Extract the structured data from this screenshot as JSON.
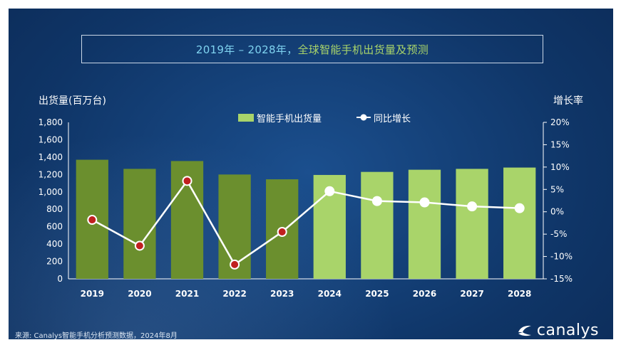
{
  "title": {
    "part_a": "2019年 – 2028年，",
    "part_b": "全球智能手机出货量及预测"
  },
  "source": "来源: Canalys智能手机分析预测数据，2024年8月",
  "logo": "canalys",
  "colors": {
    "bar_actual": "#6b8f2e",
    "bar_forecast": "#a9d46a",
    "line": "#ffffff",
    "marker_actual": "#c0201f"
  },
  "chart_data": {
    "type": "bar",
    "categories": [
      "2019",
      "2020",
      "2021",
      "2022",
      "2023",
      "2024",
      "2025",
      "2026",
      "2027",
      "2028"
    ],
    "series": [
      {
        "name": "智能手机出货量",
        "type": "bar",
        "axis": "left",
        "values": [
          1370,
          1265,
          1355,
          1200,
          1145,
          1195,
          1230,
          1255,
          1265,
          1280
        ],
        "forecast_from": "2024"
      },
      {
        "name": "同比增长",
        "type": "line",
        "axis": "right",
        "values": [
          -1.8,
          -7.6,
          6.9,
          -11.8,
          -4.5,
          4.6,
          2.4,
          2.1,
          1.2,
          0.8
        ]
      }
    ],
    "ylabel": "出货量(百万台)",
    "y2label": "增长率",
    "ylim": [
      0,
      1800
    ],
    "y2lim": [
      -15,
      20
    ],
    "yticks": [
      "1,800",
      "1,600",
      "1,400",
      "1,200",
      "1,000",
      "800",
      "600",
      "400",
      "200",
      "0"
    ],
    "y2ticks": [
      "20%",
      "15%",
      "10%",
      "5%",
      "0%",
      "-5%",
      "-10%",
      "-15%"
    ],
    "legend": "top-center",
    "grid": false
  }
}
